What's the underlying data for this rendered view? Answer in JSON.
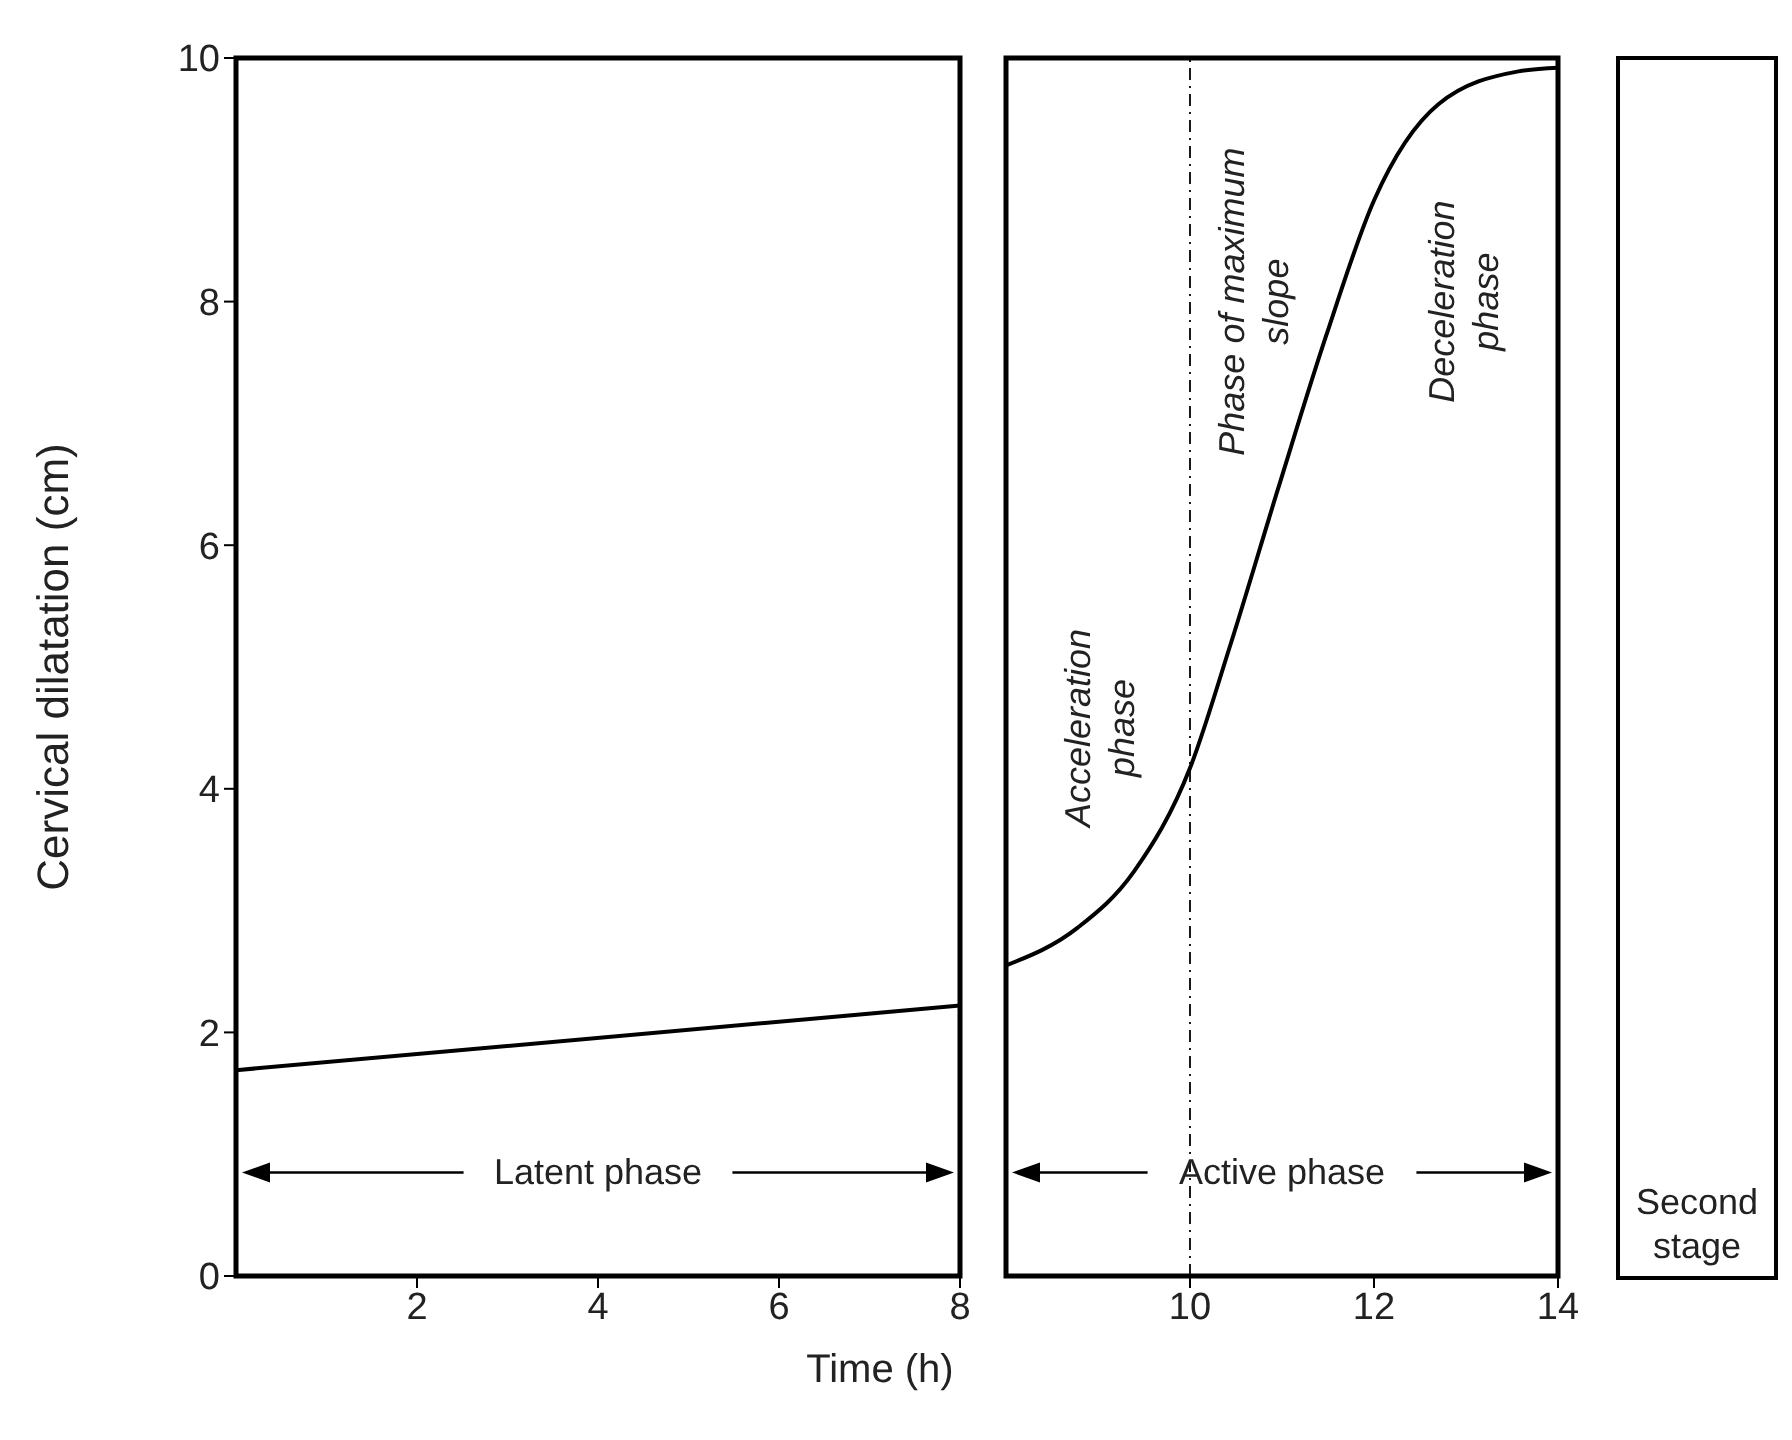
{
  "chart_data": [
    {
      "type": "line",
      "ylabel": "Cervical dilatation (cm)",
      "xlabel": "Time (h)",
      "x": [
        0,
        8
      ],
      "series": [
        {
          "color": "#000000",
          "values": [
            1.69,
            2.22
          ]
        }
      ],
      "xlim": [
        0,
        8
      ],
      "ylim": [
        0,
        10
      ],
      "xticks": [
        2,
        4,
        6,
        8
      ],
      "yticks": [
        0,
        2,
        4,
        6,
        8,
        10
      ],
      "marker": "none",
      "line_style": "solid",
      "annotations": [
        "Latent phase"
      ]
    },
    {
      "type": "line",
      "x": [
        8,
        8.78,
        9.39,
        10,
        10.43,
        10.96,
        11.48,
        12,
        12.7,
        13.57,
        14
      ],
      "series": [
        {
          "color": "#000000",
          "values": [
            2.55,
            2.86,
            3.32,
            4.17,
            5.16,
            6.47,
            7.72,
            8.83,
            9.62,
            9.89,
            9.92
          ]
        }
      ],
      "xlim": [
        8,
        14
      ],
      "ylim": [
        0,
        10
      ],
      "xticks": [
        10,
        12,
        14
      ],
      "tick_labels": "x",
      "marker": "none",
      "line_style": "solid",
      "ref_lines": [
        {
          "axis": "x",
          "value": 10,
          "color": "#000000",
          "line_style": "dashed"
        }
      ],
      "annotations": [
        "Active phase",
        "Acceleration phase",
        "Phase of maximum slope",
        "Deceleration phase"
      ]
    },
    {
      "type": "other",
      "annotations": [
        "Second stage"
      ]
    }
  ]
}
